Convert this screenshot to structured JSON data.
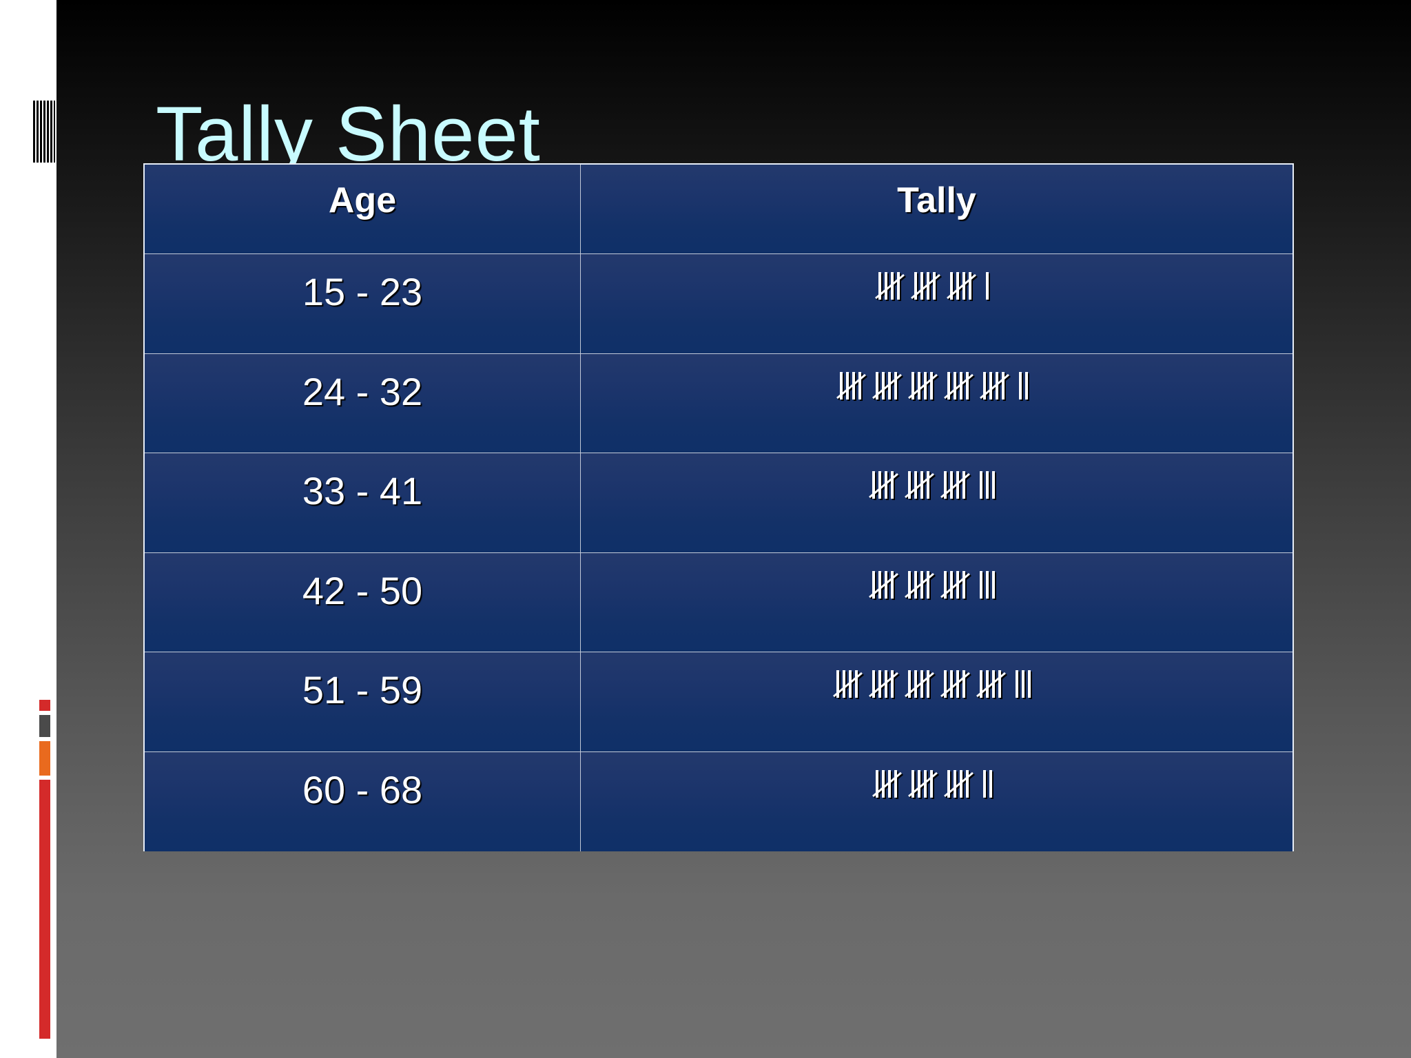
{
  "slide": {
    "title": "Tally Sheet"
  },
  "table": {
    "headers": [
      "Age",
      "Tally"
    ],
    "rows": [
      {
        "age": "15 - 23",
        "tally": "̸IIII ̸IIII ̸IIII I",
        "count": 16
      },
      {
        "age": "24 - 32",
        "tally": "̸IIII ̸IIII ̸IIII ̸IIII ̸IIII II",
        "count": 27
      },
      {
        "age": "33 - 41",
        "tally": "̸IIII ̸IIII ̸IIII III",
        "count": 18
      },
      {
        "age": "42 - 50",
        "tally": "̸IIII ̸IIII ̸IIII III",
        "count": 18
      },
      {
        "age": "51 - 59",
        "tally": "̸IIII ̸IIII ̸IIII ̸IIII ̸IIII III",
        "count": 28
      },
      {
        "age": "60 - 68",
        "tally": "̸IIII ̸IIII ̸IIII II",
        "count": 17
      }
    ]
  },
  "colors": {
    "title": "#c8fbff",
    "table_fill": "#133168",
    "table_border": "#e8eef7",
    "accent_red": "#d42a2a",
    "accent_orange": "#e96a1e",
    "accent_gray": "#4a4a4a"
  }
}
